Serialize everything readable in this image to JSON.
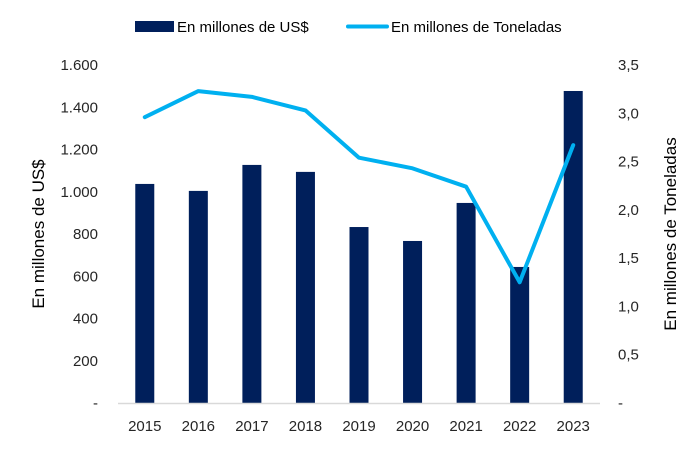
{
  "chart_data": {
    "type": "bar",
    "title": "",
    "categories": [
      "2015",
      "2016",
      "2017",
      "2018",
      "2019",
      "2020",
      "2021",
      "2022",
      "2023"
    ],
    "series": [
      {
        "name": "En millones de US$",
        "type": "bar",
        "axis": "left",
        "color": "#001f5b",
        "values": [
          1037,
          1004,
          1127,
          1094,
          833,
          767,
          947,
          644,
          1477
        ]
      },
      {
        "name": "En millones de Toneladas",
        "type": "line",
        "axis": "right",
        "color": "#00b0f0",
        "values": [
          2.96,
          3.23,
          3.17,
          3.03,
          2.54,
          2.43,
          2.24,
          1.25,
          2.67
        ]
      }
    ],
    "xlabel": "",
    "ylabel": "En millones de US$",
    "y2label": "En millones de Toneladas",
    "ylim": [
      0,
      1600
    ],
    "y2lim": [
      0,
      3.5
    ],
    "yticks": [
      "-",
      "200",
      "400",
      "600",
      "800",
      "1.000",
      "1.200",
      "1.400",
      "1.600"
    ],
    "y2ticks": [
      "-",
      "0,5",
      "1,0",
      "1,5",
      "2,0",
      "2,5",
      "3,0",
      "3,5"
    ],
    "grid": false,
    "legend_position": "top"
  },
  "legend": {
    "items": [
      {
        "label": "En millones de US$",
        "kind": "bar-swatch",
        "color": "#001f5b"
      },
      {
        "label": "En millones de Toneladas",
        "kind": "line-swatch",
        "color": "#00b0f0"
      }
    ]
  }
}
